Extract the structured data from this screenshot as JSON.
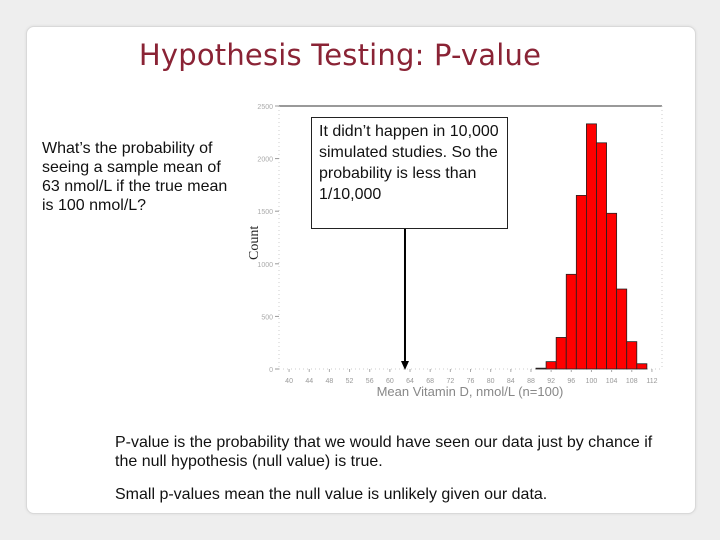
{
  "slide": {
    "title": "Hypothesis Testing: P-value",
    "question": "What’s the probability of seeing a sample mean of 63 nmol/L if the true mean is 100 nmol/L?",
    "callout": "It didn’t happen in 10,000 simulated studies. So the probability is less than 1/10,000",
    "pvalue_def": {
      "term1": "P-value",
      "mid1": " is the ",
      "term2": "probability",
      "rest": " that we would have seen our data just by chance if the null hypothesis (null value) is true."
    },
    "small_p_note": "Small p-values mean the null value is unlikely given our data."
  },
  "chart_data": {
    "type": "bar",
    "ylabel": "Count",
    "xlabel": "Mean Vitamin D, nmol/L (n=100)",
    "ytick_labels": [
      "2500",
      "2000",
      "1500",
      "1000",
      "500",
      "0"
    ],
    "xtick_labels": [
      "40",
      "44",
      "48",
      "52",
      "56",
      "60",
      "64",
      "68",
      "72",
      "76",
      "80",
      "84",
      "88",
      "92",
      "96",
      "100",
      "104",
      "108",
      "112"
    ],
    "marker_value": 63,
    "bar_color": "#ff0000",
    "bars": [
      {
        "x": 90,
        "count": 8
      },
      {
        "x": 92,
        "count": 70
      },
      {
        "x": 94,
        "count": 300
      },
      {
        "x": 96,
        "count": 900
      },
      {
        "x": 98,
        "count": 1650
      },
      {
        "x": 100,
        "count": 2330
      },
      {
        "x": 102,
        "count": 2150
      },
      {
        "x": 104,
        "count": 1480
      },
      {
        "x": 106,
        "count": 760
      },
      {
        "x": 108,
        "count": 260
      },
      {
        "x": 110,
        "count": 50
      }
    ],
    "ylim": [
      0,
      2500
    ],
    "xlim": [
      38,
      114
    ],
    "grid": false
  }
}
